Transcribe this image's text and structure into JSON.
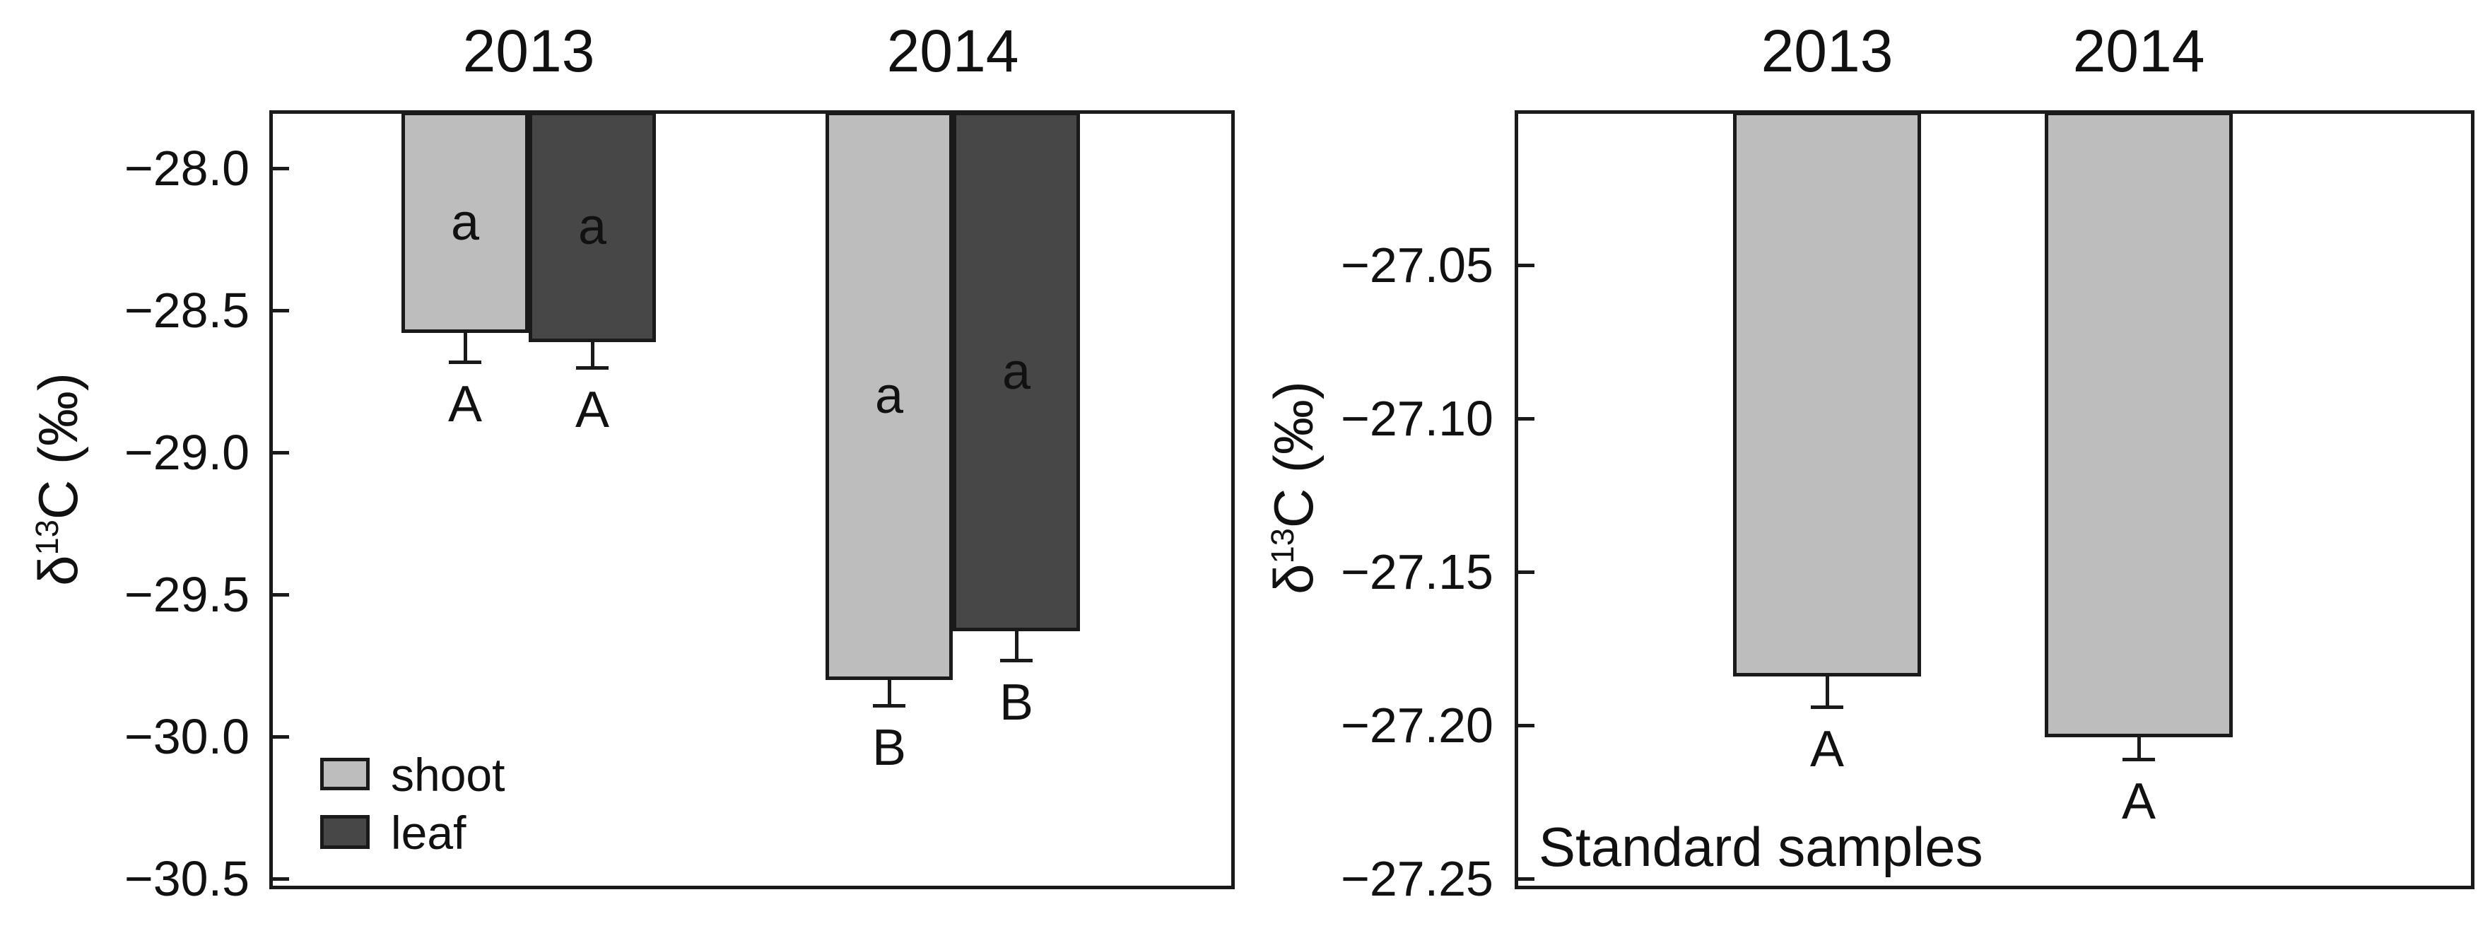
{
  "colors": {
    "shoot_fill": "#bdbdbd",
    "leaf_fill": "#474747",
    "standard_fill": "#bdbdbd",
    "stroke": "#1a1a1a",
    "background": "#ffffff"
  },
  "chart_data": [
    {
      "type": "bar",
      "panel": "shoot-leaf",
      "title": "",
      "ylabel": "δ13C (‰)",
      "ylabel_parts": {
        "base": "δ",
        "sup": "13",
        "rest": "C (‰)"
      },
      "group_labels": [
        "2013",
        "2014"
      ],
      "series": [
        {
          "name": "shoot",
          "fill": "#bdbdbd",
          "values": [
            -28.58,
            -29.8
          ],
          "errors": [
            0.1,
            0.09
          ],
          "letters_inside": [
            "a",
            "a"
          ],
          "letters_below": [
            "A",
            "B"
          ]
        },
        {
          "name": "leaf",
          "fill": "#474747",
          "values": [
            -28.61,
            -29.63
          ],
          "errors": [
            0.09,
            0.1
          ],
          "letters_inside": [
            "a",
            "a"
          ],
          "letters_below": [
            "A",
            "B"
          ]
        }
      ],
      "error_bar_direction": "down",
      "ylim": [
        -30.5,
        -27.8
      ],
      "yticks": [
        -28.0,
        -28.5,
        -29.0,
        -29.5,
        -30.0,
        -30.5
      ],
      "ytick_labels": [
        "−28.0",
        "−28.5",
        "−29.0",
        "−29.5",
        "−30.0",
        "−30.5"
      ],
      "legend": {
        "position": "bottom-left",
        "entries": [
          "shoot",
          "leaf"
        ]
      },
      "grid": false
    },
    {
      "type": "bar",
      "panel": "standard-samples",
      "title": "",
      "ylabel": "δ13C (‰)",
      "ylabel_parts": {
        "base": "δ",
        "sup": "13",
        "rest": "C (‰)"
      },
      "categories": [
        "2013",
        "2014"
      ],
      "values": [
        -27.184,
        -27.204
      ],
      "errors": [
        0.01,
        0.007
      ],
      "letters_below": [
        "A",
        "A"
      ],
      "error_bar_direction": "down",
      "annotation": "Standard samples",
      "ylim": [
        -27.25,
        -27.0
      ],
      "yticks": [
        -27.05,
        -27.1,
        -27.15,
        -27.2,
        -27.25
      ],
      "ytick_labels": [
        "−27.05",
        "−27.10",
        "−27.15",
        "−27.20",
        "−27.25"
      ],
      "legend": null,
      "grid": false
    }
  ]
}
